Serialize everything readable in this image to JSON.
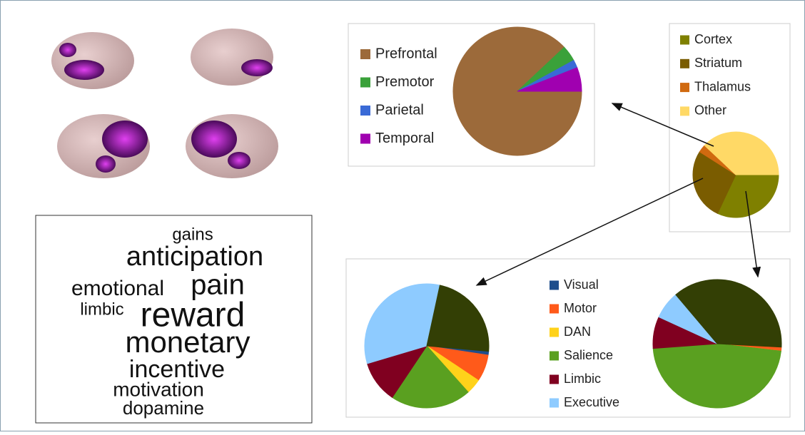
{
  "chart_data": [
    {
      "type": "pie",
      "categories": [
        "Prefrontal",
        "Premotor",
        "Parietal",
        "Temporal"
      ],
      "colors": [
        "#9c6a3a",
        "#3aa13a",
        "#3a6ad6",
        "#a000b0"
      ],
      "values": [
        88,
        4,
        2,
        6
      ]
    },
    {
      "type": "pie",
      "categories": [
        "Cortex",
        "Striatum",
        "Thalamus",
        "Other"
      ],
      "colors": [
        "#7f8000",
        "#7a5c00",
        "#d06a10",
        "#ffd966"
      ],
      "values": [
        32,
        27,
        3,
        38
      ]
    },
    {
      "type": "pie",
      "categories": [
        "Visual",
        "Motor",
        "DAN",
        "Salience",
        "Limbic",
        "Executive",
        null
      ],
      "colors": [
        "#1f4e8c",
        "#ff5a1a",
        "#ffd21a",
        "#5aa020",
        "#800020",
        "#8ecbff",
        "#333f05"
      ],
      "series": [
        {
          "values": [
            1,
            7,
            4,
            21,
            11,
            33,
            23
          ]
        },
        {
          "values": [
            0,
            1,
            0,
            47,
            8,
            7,
            37
          ]
        }
      ]
    }
  ],
  "word_cloud": {
    "words": [
      "gains",
      "anticipation",
      "emotional",
      "pain",
      "limbic",
      "reward",
      "monetary",
      "incentive",
      "motivation",
      "dopamine"
    ]
  }
}
